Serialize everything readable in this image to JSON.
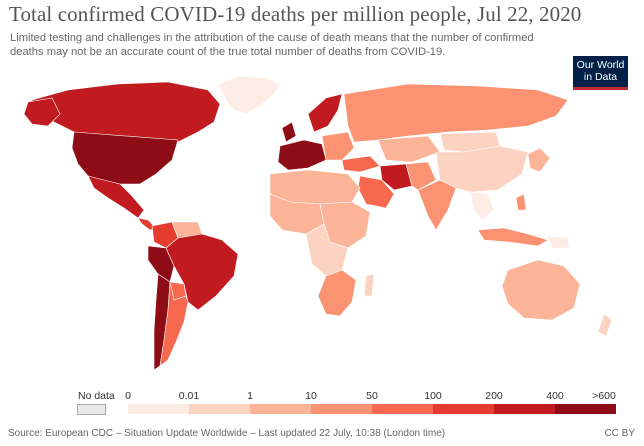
{
  "header": {
    "title": "Total confirmed COVID-19 deaths per million people, Jul 22, 2020",
    "subtitle": "Limited testing and challenges in the attribution of the cause of death means that the number of confirmed deaths may not be an accurate count of the true total number of deaths from COVID-19."
  },
  "logo": {
    "line1": "Our World",
    "line2": "in Data"
  },
  "legend": {
    "no_data_label": "No data",
    "no_data_color": "#e8e8e8",
    "ticks": [
      "0",
      "0.01",
      "1",
      "10",
      "50",
      "100",
      "200",
      "400",
      ">600"
    ],
    "colors": [
      "#fdece4",
      "#fcd3c1",
      "#fcb499",
      "#fb9272",
      "#f6694f",
      "#e43d30",
      "#c11a1f",
      "#8e0c16"
    ]
  },
  "footer": {
    "source": "Source: European CDC – Situation Update Worldwide – Last updated 22 July, 10:38 (London time)",
    "license": "CC BY"
  }
}
